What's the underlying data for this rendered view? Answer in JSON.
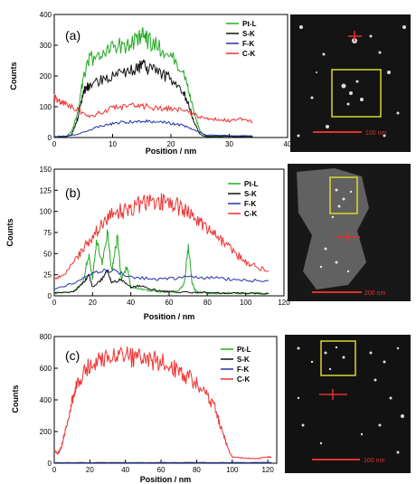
{
  "chart_data": [
    {
      "type": "line",
      "panel_label": "(a)",
      "xlabel": "Position / nm",
      "ylabel": "Counts",
      "xlim": [
        0,
        40
      ],
      "ylim": [
        0,
        400
      ],
      "xticks": [
        0,
        10,
        20,
        30,
        40
      ],
      "yticks": [
        0,
        100,
        200,
        300,
        400
      ],
      "legend": "top-right",
      "series": [
        {
          "name": "Pt-L",
          "color": "#22aa22",
          "x": [
            0,
            2,
            3,
            4,
            5,
            6,
            8,
            10,
            12,
            14,
            15,
            16,
            18,
            20,
            22,
            23,
            24,
            25,
            26,
            34
          ],
          "y": [
            2,
            2,
            20,
            80,
            200,
            250,
            280,
            290,
            300,
            320,
            330,
            315,
            290,
            270,
            220,
            160,
            80,
            20,
            5,
            5
          ]
        },
        {
          "name": "S-K",
          "color": "#111111",
          "x": [
            0,
            2,
            3,
            4,
            5,
            6,
            8,
            10,
            12,
            14,
            15,
            16,
            18,
            20,
            22,
            23,
            24,
            25,
            26,
            34
          ],
          "y": [
            2,
            2,
            10,
            60,
            150,
            170,
            190,
            200,
            210,
            225,
            235,
            225,
            210,
            190,
            150,
            110,
            50,
            10,
            3,
            3
          ]
        },
        {
          "name": "F-K",
          "color": "#2233aa",
          "x": [
            0,
            2,
            4,
            6,
            8,
            10,
            12,
            14,
            16,
            18,
            20,
            22,
            24,
            26,
            34
          ],
          "y": [
            3,
            5,
            10,
            25,
            38,
            45,
            50,
            52,
            52,
            50,
            46,
            40,
            25,
            8,
            5
          ]
        },
        {
          "name": "C-K",
          "color": "#ee3333",
          "x": [
            0,
            1,
            2,
            4,
            6,
            8,
            10,
            12,
            14,
            16,
            18,
            20,
            22,
            24,
            26,
            28,
            30,
            32,
            34
          ],
          "y": [
            130,
            120,
            110,
            90,
            70,
            80,
            95,
            100,
            105,
            100,
            95,
            92,
            88,
            75,
            60,
            58,
            55,
            60,
            50
          ]
        }
      ]
    },
    {
      "type": "line",
      "panel_label": "(b)",
      "xlabel": "Position / nm",
      "ylabel": "Counts",
      "xlim": [
        0,
        120
      ],
      "ylim": [
        0,
        150
      ],
      "xticks": [
        0,
        20,
        40,
        60,
        80,
        100,
        120
      ],
      "yticks": [
        0,
        25,
        50,
        75,
        100,
        125,
        150
      ],
      "legend": "top-right",
      "series": [
        {
          "name": "Pt-L",
          "color": "#22aa22",
          "x": [
            0,
            10,
            15,
            18,
            20,
            22,
            25,
            28,
            30,
            33,
            35,
            38,
            40,
            45,
            50,
            55,
            60,
            65,
            68,
            70,
            72,
            74,
            76,
            80,
            85,
            90,
            100,
            112
          ],
          "y": [
            3,
            5,
            15,
            50,
            20,
            65,
            40,
            75,
            30,
            70,
            20,
            35,
            10,
            8,
            6,
            5,
            5,
            6,
            15,
            60,
            15,
            5,
            4,
            3,
            3,
            3,
            3,
            3
          ]
        },
        {
          "name": "S-K",
          "color": "#111111",
          "x": [
            0,
            10,
            15,
            18,
            20,
            25,
            28,
            30,
            35,
            40,
            45,
            50,
            55,
            60,
            70,
            80,
            90,
            100,
            112
          ],
          "y": [
            3,
            5,
            15,
            25,
            10,
            20,
            30,
            15,
            20,
            10,
            12,
            8,
            6,
            5,
            4,
            4,
            3,
            3,
            3
          ]
        },
        {
          "name": "F-K",
          "color": "#2233aa",
          "x": [
            0,
            10,
            20,
            30,
            40,
            50,
            60,
            70,
            80,
            90,
            100,
            112
          ],
          "y": [
            8,
            15,
            28,
            30,
            22,
            20,
            20,
            22,
            22,
            20,
            18,
            18
          ]
        },
        {
          "name": "C-K",
          "color": "#ee3333",
          "x": [
            0,
            5,
            10,
            15,
            20,
            25,
            30,
            35,
            40,
            45,
            50,
            55,
            60,
            65,
            70,
            75,
            80,
            85,
            90,
            95,
            100,
            105,
            112
          ],
          "y": [
            20,
            25,
            40,
            55,
            70,
            85,
            95,
            100,
            105,
            108,
            110,
            112,
            110,
            105,
            100,
            90,
            80,
            70,
            60,
            50,
            40,
            35,
            30
          ]
        }
      ]
    },
    {
      "type": "line",
      "panel_label": "(c)",
      "xlabel": "Position / nm",
      "ylabel": "Counts",
      "xlim": [
        0,
        125
      ],
      "ylim": [
        0,
        800
      ],
      "xticks": [
        0,
        20,
        40,
        60,
        80,
        100,
        120
      ],
      "yticks": [
        0,
        200,
        400,
        600,
        800
      ],
      "legend": "top-right",
      "series": [
        {
          "name": "Pt-L",
          "color": "#22aa22",
          "x": [
            0,
            20,
            40,
            60,
            80,
            100,
            122
          ],
          "y": [
            3,
            3,
            3,
            3,
            3,
            3,
            3
          ]
        },
        {
          "name": "S-K",
          "color": "#111111",
          "x": [
            0,
            20,
            40,
            60,
            80,
            100,
            122
          ],
          "y": [
            2,
            2,
            2,
            2,
            2,
            2,
            2
          ]
        },
        {
          "name": "F-K",
          "color": "#2233aa",
          "x": [
            0,
            20,
            40,
            60,
            80,
            100,
            122
          ],
          "y": [
            4,
            4,
            4,
            4,
            4,
            4,
            4
          ]
        },
        {
          "name": "C-K",
          "color": "#ee3333",
          "x": [
            0,
            2,
            4,
            6,
            8,
            10,
            12,
            15,
            20,
            25,
            30,
            35,
            40,
            45,
            50,
            55,
            60,
            65,
            70,
            75,
            80,
            85,
            90,
            93,
            96,
            98,
            100,
            105,
            110,
            115,
            120,
            122
          ],
          "y": [
            80,
            60,
            100,
            200,
            300,
            400,
            480,
            550,
            620,
            650,
            660,
            665,
            670,
            670,
            665,
            650,
            640,
            610,
            580,
            550,
            500,
            450,
            350,
            250,
            150,
            80,
            40,
            35,
            30,
            30,
            40,
            35
          ]
        }
      ]
    }
  ],
  "images": [
    {
      "scalebar": "100 nm",
      "frame_color": "#d8d830"
    },
    {
      "scalebar": "200 nm",
      "frame_color": "#d8d830"
    },
    {
      "scalebar": "100 nm",
      "frame_color": "#d8d830"
    }
  ]
}
